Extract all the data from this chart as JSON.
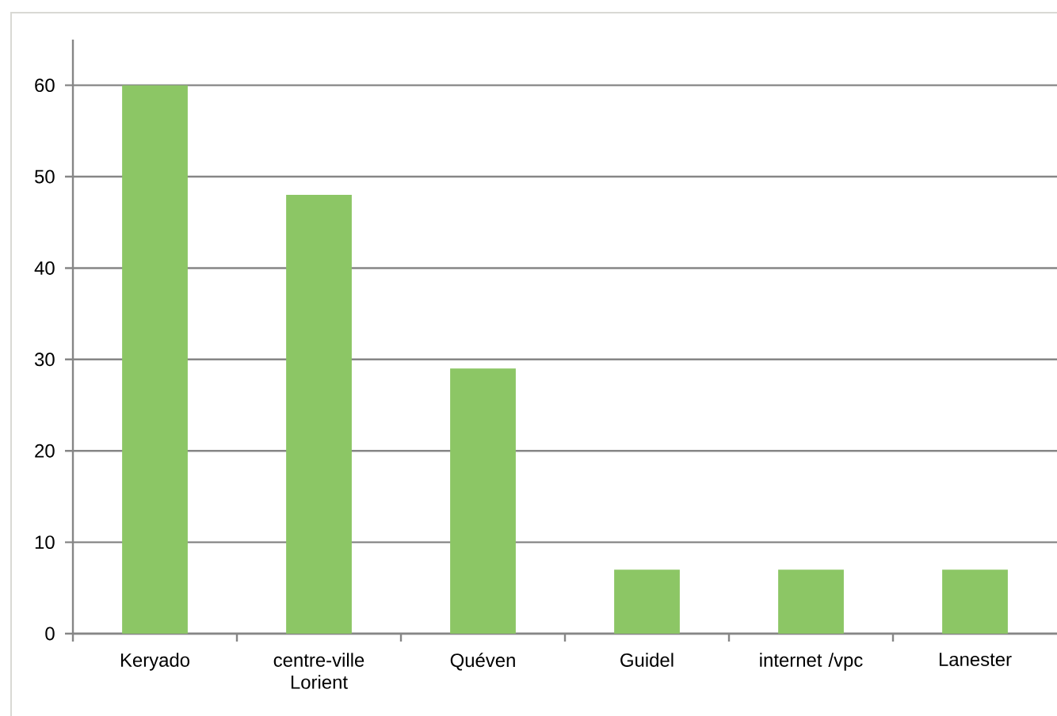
{
  "chart_data": {
    "type": "bar",
    "categories": [
      "Keryado",
      "centre-ville Lorient",
      "Quéven",
      "Guidel",
      "internet /vpc",
      "Lanester"
    ],
    "values": [
      60,
      48,
      29,
      7,
      7,
      7
    ],
    "color": "#8cc665",
    "ylim": [
      0,
      65
    ],
    "yticks": [
      0,
      10,
      20,
      30,
      40,
      50,
      60
    ],
    "grid": "y"
  }
}
